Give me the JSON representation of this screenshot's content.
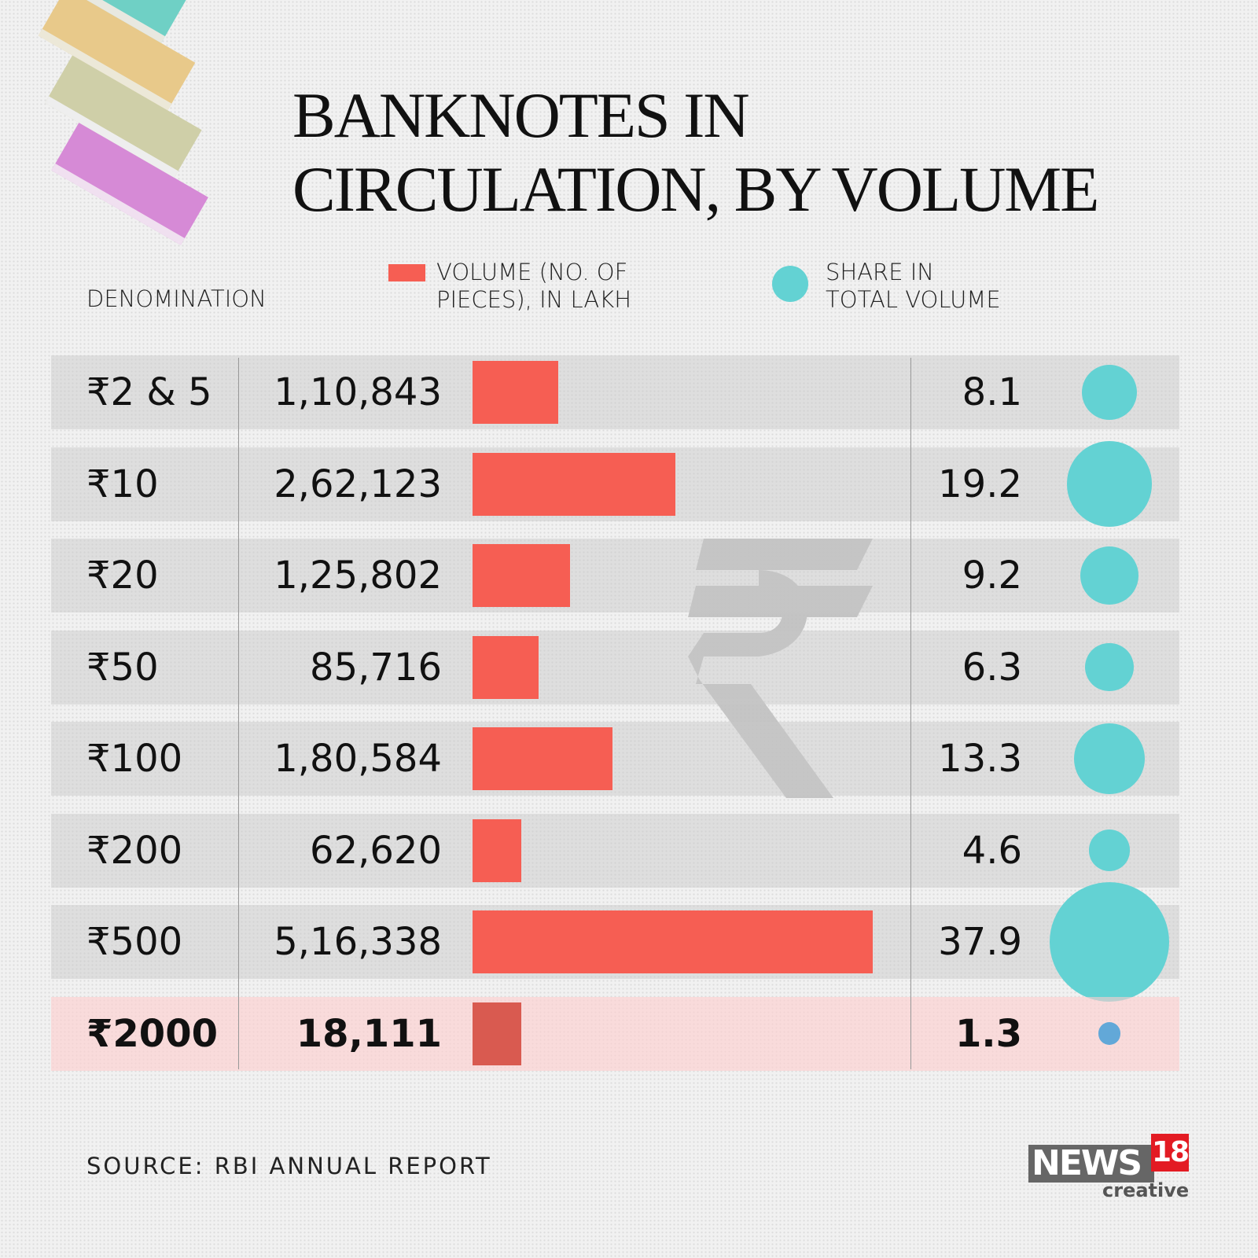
{
  "title_line1": "BANKNOTES IN",
  "title_line2": "CIRCULATION, BY VOLUME",
  "headers": {
    "denomination": "DENOMINATION",
    "volume_l1": "VOLUME (NO. OF",
    "volume_l2": "PIECES), IN LAKH",
    "share_l1": "SHARE IN",
    "share_l2": "TOTAL VOLUME"
  },
  "source": "SOURCE: RBI ANNUAL REPORT",
  "logo": {
    "text": "NEWS",
    "num": "18",
    "sub": "creative"
  },
  "colors": {
    "bar": "#f65e53",
    "bar_highlight": "#d95a50",
    "dot": "#63d2d3",
    "dot_highlight": "#62a8d8",
    "row_highlight": "#fcdcdc"
  },
  "chart_data": {
    "type": "table",
    "categories": [
      "₹2 & 5",
      "₹10",
      "₹20",
      "₹50",
      "₹100",
      "₹200",
      "₹500",
      "₹2000"
    ],
    "volume_labels": [
      "1,10,843",
      "2,62,123",
      "1,25,802",
      "85,716",
      "1,80,584",
      "62,620",
      "5,16,338",
      "18,111"
    ],
    "volume": [
      110843,
      262123,
      125802,
      85716,
      180584,
      62620,
      516338,
      18111
    ],
    "share_labels": [
      "8.1",
      "19.2",
      "9.2",
      "6.3",
      "13.3",
      "4.6",
      "37.9",
      "1.3"
    ],
    "share": [
      8.1,
      19.2,
      9.2,
      6.3,
      13.3,
      4.6,
      37.9,
      1.3
    ],
    "highlight": "₹2000"
  }
}
